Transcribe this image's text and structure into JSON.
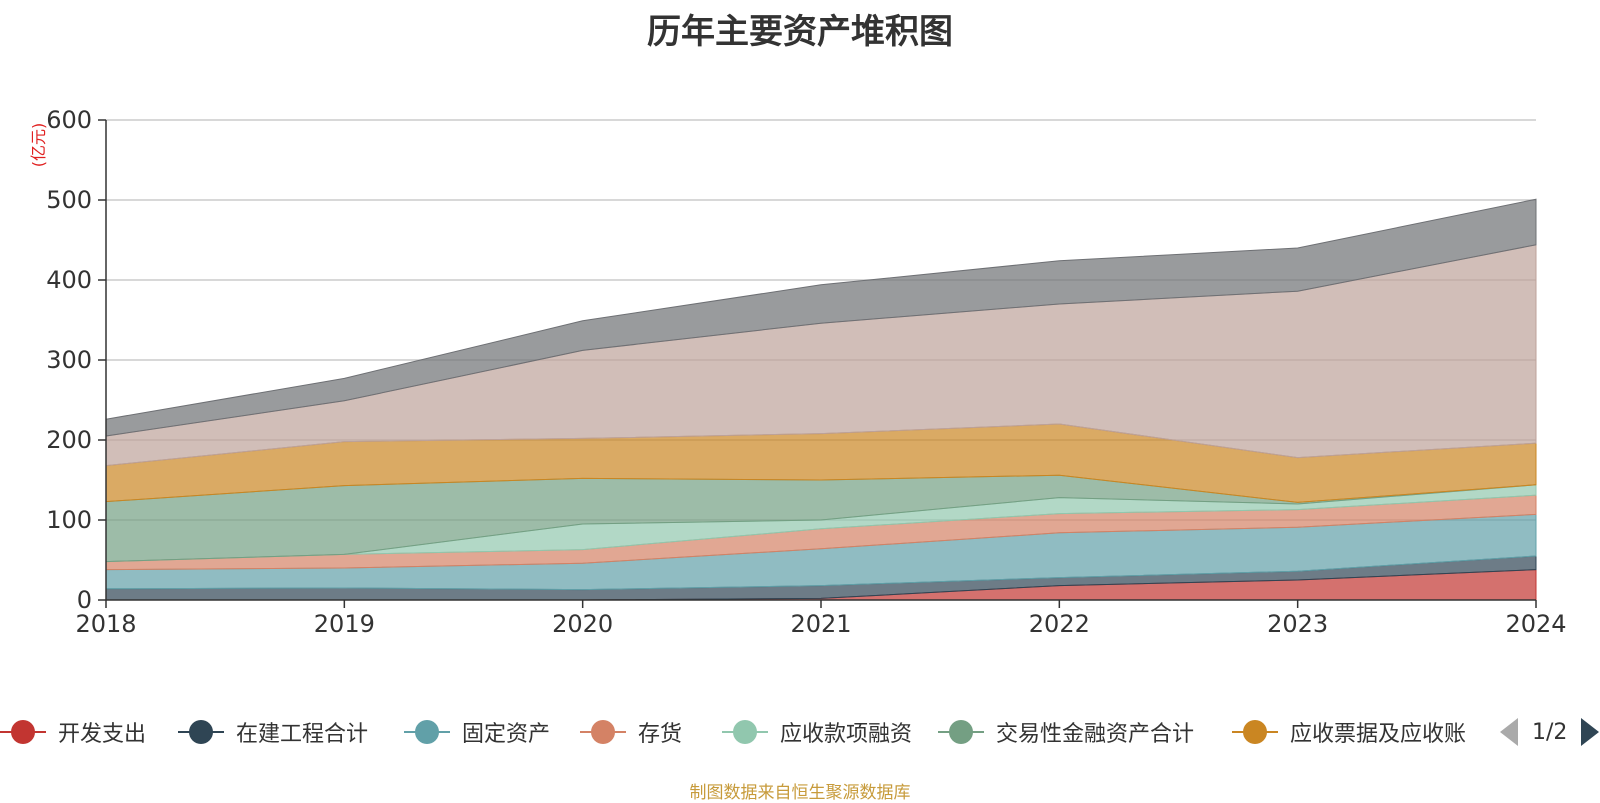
{
  "chart_data": {
    "type": "area",
    "stacked": true,
    "title": "历年主要资产堆积图",
    "unit_label": "(亿元)",
    "x": [
      "2018",
      "2019",
      "2020",
      "2021",
      "2022",
      "2023",
      "2024"
    ],
    "ylim": [
      0,
      600
    ],
    "yticks": [
      0,
      100,
      200,
      300,
      400,
      500,
      600
    ],
    "grid": true,
    "legend_position": "bottom",
    "series": [
      {
        "name": "开发支出",
        "color": "#c23531",
        "values": [
          0,
          0,
          0,
          2,
          18,
          25,
          38
        ]
      },
      {
        "name": "在建工程合计",
        "color": "#2f4554",
        "values": [
          14,
          15,
          13,
          16,
          10,
          11,
          17
        ]
      },
      {
        "name": "固定资产",
        "color": "#61a0a8",
        "values": [
          24,
          25,
          33,
          46,
          56,
          55,
          52
        ]
      },
      {
        "name": "存货",
        "color": "#d48265",
        "values": [
          10,
          17,
          17,
          25,
          24,
          22,
          24
        ]
      },
      {
        "name": "应收款项融资",
        "color": "#91c7ae",
        "values": [
          0,
          0,
          32,
          11,
          20,
          7,
          13
        ]
      },
      {
        "name": "交易性金融资产合计",
        "color": "#749f83",
        "values": [
          75,
          86,
          57,
          50,
          28,
          2,
          0
        ]
      },
      {
        "name": "应收票据及应收账",
        "color": "#ca8622",
        "values": [
          45,
          55,
          50,
          58,
          64,
          56,
          52
        ]
      },
      {
        "name": "",
        "color": "#bda29a",
        "values": [
          37,
          51,
          110,
          138,
          150,
          208,
          248
        ]
      },
      {
        "name": "",
        "color": "#6e7074",
        "values": [
          21,
          28,
          37,
          48,
          54,
          54,
          57
        ]
      }
    ]
  },
  "legend": {
    "items": [
      {
        "label": "开发支出",
        "color": "#c23531"
      },
      {
        "label": "在建工程合计",
        "color": "#2f4554"
      },
      {
        "label": "固定资产",
        "color": "#61a0a8"
      },
      {
        "label": "存货",
        "color": "#d48265"
      },
      {
        "label": "应收款项融资",
        "color": "#91c7ae"
      },
      {
        "label": "交易性金融资产合计",
        "color": "#749f83"
      },
      {
        "label": "应收票据及应收账",
        "color": "#ca8622"
      }
    ],
    "page_indicator": "1/2",
    "prev_icon": "triangle-left-icon",
    "next_icon": "triangle-right-icon"
  },
  "footer": {
    "source_note": "制图数据来自恒生聚源数据库"
  }
}
